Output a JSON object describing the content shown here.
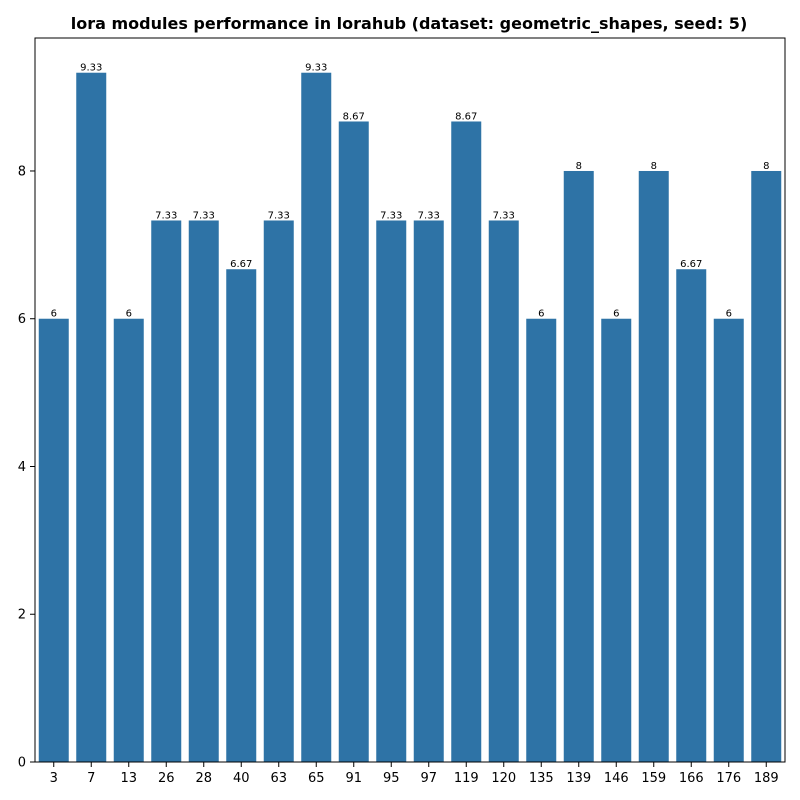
{
  "chart_data": {
    "type": "bar",
    "title": "lora modules performance in lorahub (dataset: geometric_shapes, seed: 5)",
    "xlabel": "",
    "ylabel": "",
    "categories": [
      "3",
      "7",
      "13",
      "26",
      "28",
      "40",
      "63",
      "65",
      "91",
      "95",
      "97",
      "119",
      "120",
      "135",
      "139",
      "146",
      "159",
      "166",
      "176",
      "189"
    ],
    "values": [
      6,
      9.33,
      6,
      7.33,
      7.33,
      6.67,
      7.33,
      9.33,
      8.67,
      7.33,
      7.33,
      8.67,
      7.33,
      6,
      8,
      6,
      8,
      6.67,
      6,
      8
    ],
    "value_labels": [
      "6",
      "9.33",
      "6",
      "7.33",
      "7.33",
      "6.67",
      "7.33",
      "9.33",
      "8.67",
      "7.33",
      "7.33",
      "8.67",
      "7.33",
      "6",
      "8",
      "6",
      "8",
      "6.67",
      "6",
      "8"
    ],
    "ylim": [
      0,
      9.8
    ],
    "yticks": [
      0,
      2,
      4,
      6,
      8
    ],
    "ytick_labels": [
      "0",
      "2",
      "4",
      "6",
      "8"
    ],
    "grid": false,
    "bar_color": "#2e73a6"
  }
}
